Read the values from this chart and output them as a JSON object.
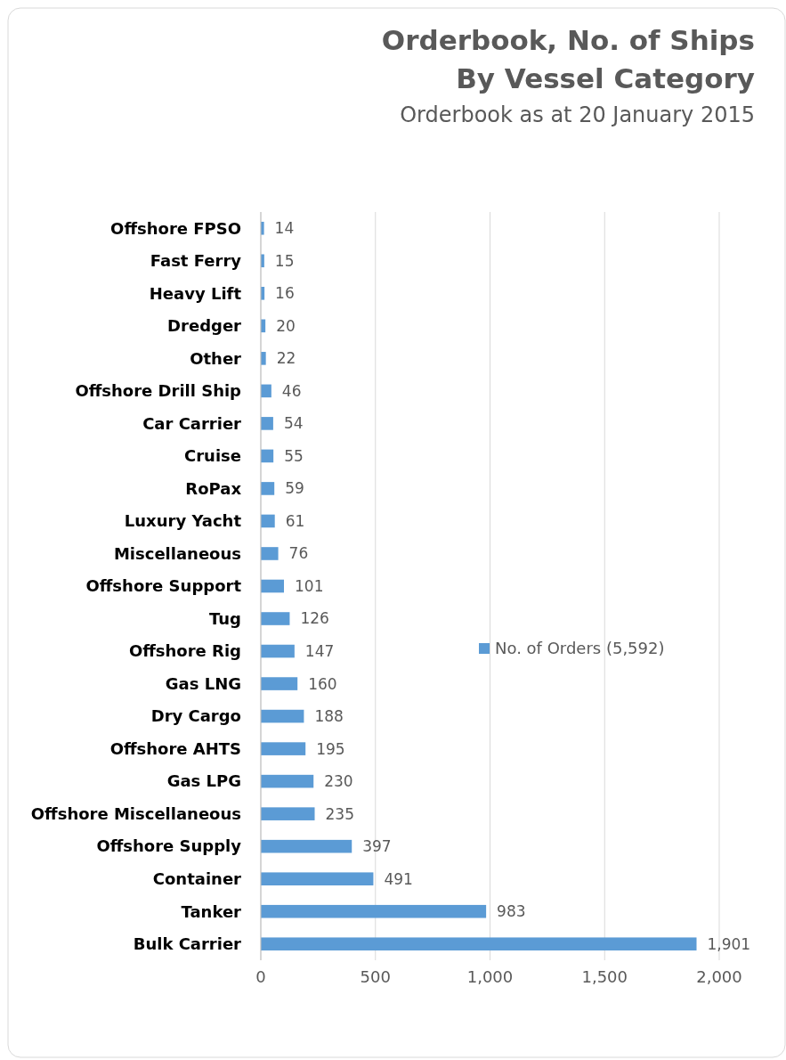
{
  "chart_data": {
    "type": "bar",
    "orientation": "horizontal",
    "title": "Orderbook, No. of Ships\nBy Vessel Category",
    "subtitle": "Orderbook as at 20 January 2015",
    "categories": [
      "Offshore FPSO",
      "Fast Ferry",
      "Heavy Lift",
      "Dredger",
      "Other",
      "Offshore Drill Ship",
      "Car Carrier",
      "Cruise",
      "RoPax",
      "Luxury Yacht",
      "Miscellaneous",
      "Offshore Support",
      "Tug",
      "Offshore Rig",
      "Gas LNG",
      "Dry Cargo",
      "Offshore AHTS",
      "Gas LPG",
      "Offshore Miscellaneous",
      "Offshore Supply",
      "Container",
      "Tanker",
      "Bulk Carrier"
    ],
    "series": [
      {
        "name": "No. of Orders (5,592)",
        "color": "#5b9bd5",
        "values": [
          14,
          15,
          16,
          20,
          22,
          46,
          54,
          55,
          59,
          61,
          76,
          101,
          126,
          147,
          160,
          188,
          195,
          230,
          235,
          397,
          491,
          983,
          1901
        ],
        "value_labels": [
          "14",
          "15",
          "16",
          "20",
          "22",
          "46",
          "54",
          "55",
          "59",
          "61",
          "76",
          "101",
          "126",
          "147",
          "160",
          "188",
          "195",
          "230",
          "235",
          "397",
          "491",
          "983",
          "1,901"
        ]
      }
    ],
    "xlim": [
      0,
      2000
    ],
    "xticks": [
      0,
      500,
      {
        "value": 1000,
        "label": "1,000"
      },
      {
        "value": 1500,
        "label": "1,500"
      },
      {
        "value": 2000,
        "label": "2,000"
      }
    ],
    "grid": "x",
    "legend": "right"
  }
}
